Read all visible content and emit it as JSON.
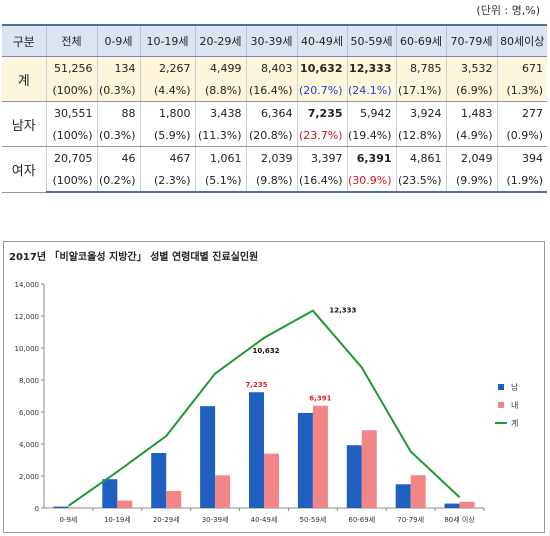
{
  "unit_note": "(단위 : 명,%)",
  "table": {
    "headers": [
      "구분",
      "전체",
      "0-9세",
      "10-19세",
      "20-29세",
      "30-39세",
      "40-49세",
      "50-59세",
      "60-69세",
      "70-79세",
      "80세이상"
    ],
    "groups": [
      {
        "label": "계",
        "counts": [
          "51,256",
          "134",
          "2,267",
          "4,499",
          "8,403",
          "10,632",
          "12,333",
          "8,785",
          "3,532",
          "671"
        ],
        "percents": [
          "(100%)",
          "(0.3%)",
          "(4.4%)",
          "(8.8%)",
          "(16.4%)",
          "(20.7%)",
          "(24.1%)",
          "(17.1%)",
          "(6.9%)",
          "(1.3%)"
        ]
      },
      {
        "label": "남자",
        "counts": [
          "30,551",
          "88",
          "1,800",
          "3,438",
          "6,364",
          "7,235",
          "5,942",
          "3,924",
          "1,483",
          "277"
        ],
        "percents": [
          "(100%)",
          "(0.3%)",
          "(5.9%)",
          "(11.3%)",
          "(20.8%)",
          "(23.7%)",
          "(19.4%)",
          "(12.8%)",
          "(4.9%)",
          "(0.9%)"
        ]
      },
      {
        "label": "여자",
        "counts": [
          "20,705",
          "46",
          "467",
          "1,061",
          "2,039",
          "3,397",
          "6,391",
          "4,861",
          "2,049",
          "394"
        ],
        "percents": [
          "(100%)",
          "(0.2%)",
          "(2.3%)",
          "(5.1%)",
          "(9.8%)",
          "(16.4%)",
          "(30.9%)",
          "(23.5%)",
          "(9.9%)",
          "(1.9%)"
        ]
      }
    ]
  },
  "chart_data": {
    "type": "bar",
    "title": "2017년 「비알코올성 지방간」 성별 연령대별 진료실인원",
    "categories": [
      "0-9세",
      "10-19세",
      "20-29세",
      "30-39세",
      "40-49세",
      "50-59세",
      "60-69세",
      "70-79세",
      "80세 이상"
    ],
    "series": [
      {
        "name": "남",
        "kind": "bar",
        "color": "#1f5fbf",
        "values": [
          88,
          1800,
          3438,
          6364,
          7235,
          5942,
          3924,
          1483,
          277
        ]
      },
      {
        "name": "내",
        "kind": "bar",
        "color": "#f28585",
        "values": [
          46,
          467,
          1061,
          2039,
          3397,
          6391,
          4861,
          2049,
          394
        ]
      },
      {
        "name": "계",
        "kind": "line",
        "color": "#1e9a2e",
        "values": [
          134,
          2267,
          4499,
          8403,
          10632,
          12333,
          8785,
          3532,
          671
        ]
      }
    ],
    "annotations": [
      {
        "series": "남",
        "category": "40-49세",
        "text": "7,235",
        "color": "#e02020"
      },
      {
        "series": "내",
        "category": "50-59세",
        "text": "6,391",
        "color": "#e02020"
      },
      {
        "series": "계",
        "category": "40-49세",
        "text": "10,632",
        "color": "#111111"
      },
      {
        "series": "계",
        "category": "50-59세",
        "text": "12,333",
        "color": "#111111"
      }
    ],
    "ylim": [
      0,
      14000
    ],
    "yticks": [
      "0",
      "2,000",
      "4,000",
      "6,000",
      "8,000",
      "10,000",
      "12,000",
      "14,000"
    ],
    "grid": false,
    "legend": "right"
  }
}
